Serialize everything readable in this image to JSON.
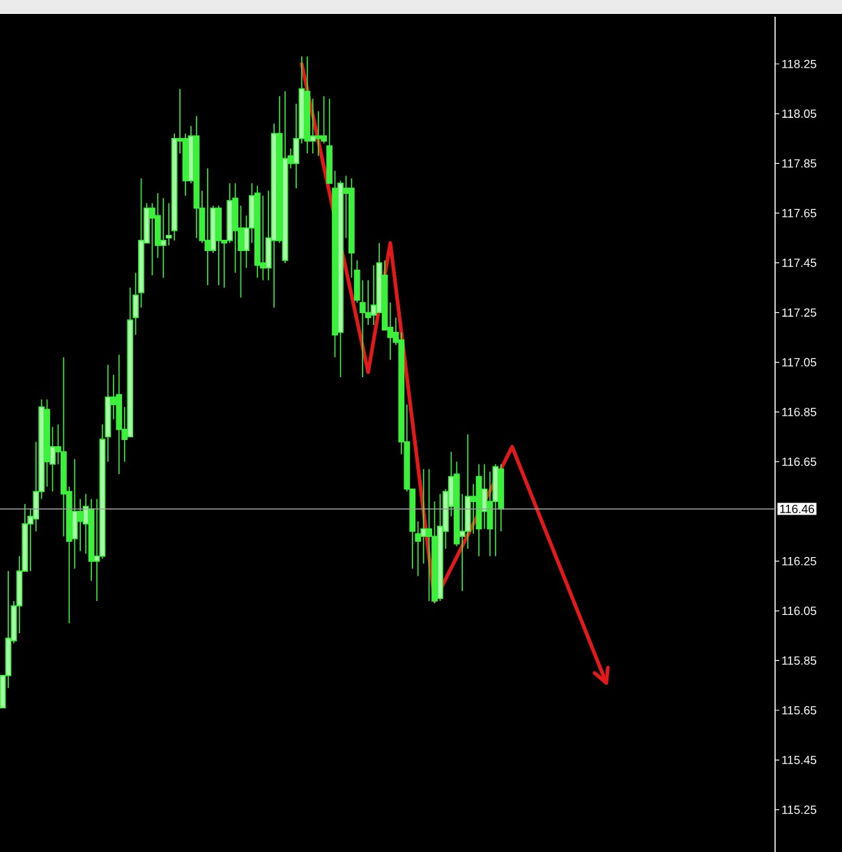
{
  "chart_data": {
    "type": "candlestick",
    "color": "#3cf03c",
    "categories": [
      null,
      null,
      null,
      null,
      null,
      null,
      null,
      null,
      null,
      null,
      null,
      null,
      null,
      null,
      null,
      null,
      null,
      null,
      null,
      null,
      null,
      null,
      null,
      null,
      null,
      null,
      null,
      null,
      null,
      null,
      null,
      null,
      null,
      null,
      null,
      null,
      null,
      null,
      null,
      null,
      null,
      null,
      null,
      null,
      null,
      null,
      null,
      null,
      null,
      null,
      null,
      null,
      null,
      null,
      null,
      null,
      null,
      null,
      null,
      null,
      null,
      null,
      null,
      null,
      null,
      null,
      null,
      null,
      null,
      null,
      null,
      null,
      null,
      null,
      null,
      null,
      null,
      null,
      null,
      null,
      null,
      null,
      null,
      null,
      null,
      null,
      null,
      null,
      null,
      null,
      null,
      null,
      null,
      null,
      null,
      null,
      null,
      null,
      null,
      null,
      null,
      null,
      null,
      null,
      null,
      null,
      null,
      null,
      null,
      null,
      null,
      null,
      null,
      null,
      null,
      null,
      null,
      null,
      null,
      null,
      null,
      null,
      null,
      null,
      null,
      null,
      null,
      null,
      null,
      null,
      null,
      null,
      null,
      null,
      null,
      null,
      null,
      null,
      null,
      null
    ],
    "ohlc": [
      [
        115.66,
        115.79,
        115.66,
        115.79
      ],
      [
        115.79,
        116.21,
        115.74,
        115.94
      ],
      [
        115.93,
        116.09,
        115.92,
        116.07
      ],
      [
        116.07,
        116.27,
        115.96,
        116.21
      ],
      [
        116.21,
        116.48,
        116.21,
        116.4
      ],
      [
        116.4,
        116.46,
        116.21,
        116.43
      ],
      [
        116.42,
        116.73,
        116.37,
        116.53
      ],
      [
        116.53,
        116.9,
        116.5,
        116.87
      ],
      [
        116.86,
        116.9,
        116.55,
        116.65
      ],
      [
        116.64,
        116.79,
        116.53,
        116.71
      ],
      [
        116.71,
        116.8,
        116.64,
        116.69
      ],
      [
        116.69,
        117.07,
        116.35,
        116.52
      ],
      [
        116.53,
        116.55,
        116.0,
        116.33
      ],
      [
        116.34,
        116.66,
        116.22,
        116.45
      ],
      [
        116.45,
        116.5,
        116.29,
        116.41
      ],
      [
        116.4,
        116.52,
        116.28,
        116.47
      ],
      [
        116.46,
        116.5,
        116.17,
        116.25
      ],
      [
        116.25,
        116.5,
        116.09,
        116.27
      ],
      [
        116.27,
        116.8,
        116.26,
        116.74
      ],
      [
        116.75,
        117.04,
        116.65,
        116.91
      ],
      [
        116.91,
        117.0,
        116.82,
        116.88
      ],
      [
        116.92,
        117.08,
        116.6,
        116.78
      ],
      [
        116.78,
        116.87,
        116.65,
        116.74
      ],
      [
        116.75,
        117.35,
        116.75,
        117.22
      ],
      [
        117.23,
        117.41,
        117.16,
        117.32
      ],
      [
        117.33,
        117.79,
        117.27,
        117.54
      ],
      [
        117.53,
        117.69,
        117.53,
        117.67
      ],
      [
        117.67,
        117.69,
        117.4,
        117.63
      ],
      [
        117.64,
        117.73,
        117.47,
        117.52
      ],
      [
        117.52,
        117.71,
        117.39,
        117.54
      ],
      [
        117.55,
        117.69,
        117.52,
        117.56
      ],
      [
        117.58,
        117.97,
        117.54,
        117.95
      ],
      [
        117.95,
        118.15,
        117.89,
        117.94
      ],
      [
        117.95,
        117.97,
        117.72,
        117.78
      ],
      [
        117.78,
        118.0,
        117.77,
        117.96
      ],
      [
        117.96,
        118.04,
        117.55,
        117.67
      ],
      [
        117.67,
        117.74,
        117.53,
        117.54
      ],
      [
        117.54,
        117.83,
        117.36,
        117.5
      ],
      [
        117.5,
        117.68,
        117.49,
        117.67
      ],
      [
        117.67,
        117.68,
        117.36,
        117.54
      ],
      [
        117.54,
        117.54,
        117.35,
        117.53
      ],
      [
        117.54,
        117.77,
        117.53,
        117.7
      ],
      [
        117.71,
        117.77,
        117.41,
        117.58
      ],
      [
        117.59,
        117.68,
        117.31,
        117.5
      ],
      [
        117.5,
        117.64,
        117.43,
        117.59
      ],
      [
        117.59,
        117.77,
        117.53,
        117.72
      ],
      [
        117.73,
        117.76,
        117.39,
        117.44
      ],
      [
        117.45,
        117.72,
        117.38,
        117.43
      ],
      [
        117.43,
        117.74,
        117.38,
        117.55
      ],
      [
        117.54,
        118.01,
        117.27,
        117.97
      ],
      [
        117.97,
        118.12,
        117.53,
        117.54
      ],
      [
        117.46,
        118.14,
        117.45,
        117.87
      ],
      [
        117.88,
        117.91,
        117.83,
        117.85
      ],
      [
        117.85,
        118.09,
        117.75,
        117.95
      ],
      [
        117.95,
        118.28,
        117.93,
        118.15
      ],
      [
        118.14,
        118.28,
        117.89,
        117.94
      ],
      [
        117.94,
        118.11,
        117.89,
        117.96
      ],
      [
        117.96,
        118.06,
        117.88,
        117.95
      ],
      [
        117.96,
        118.12,
        117.93,
        117.94
      ],
      [
        117.92,
        118.11,
        117.77,
        117.77
      ],
      [
        117.75,
        117.82,
        117.07,
        117.16
      ],
      [
        117.17,
        117.78,
        116.99,
        117.77
      ],
      [
        117.75,
        117.8,
        117.55,
        117.73
      ],
      [
        117.75,
        117.79,
        117.39,
        117.49
      ],
      [
        117.42,
        117.46,
        117.29,
        117.3
      ],
      [
        117.29,
        117.38,
        116.99,
        117.25
      ],
      [
        117.25,
        117.38,
        117.2,
        117.23
      ],
      [
        117.24,
        117.44,
        117.2,
        117.28
      ],
      [
        117.25,
        117.53,
        117.25,
        117.45
      ],
      [
        117.4,
        117.46,
        117.18,
        117.18
      ],
      [
        117.19,
        117.29,
        117.06,
        117.15
      ],
      [
        117.17,
        117.23,
        117.12,
        117.13
      ],
      [
        117.14,
        117.17,
        116.68,
        116.73
      ],
      [
        116.73,
        116.88,
        116.53,
        116.54
      ],
      [
        116.54,
        116.54,
        116.22,
        116.37
      ],
      [
        116.36,
        116.41,
        116.19,
        116.33
      ],
      [
        116.35,
        116.62,
        116.24,
        116.38
      ],
      [
        116.38,
        116.62,
        116.09,
        116.35
      ],
      [
        116.35,
        116.49,
        116.08,
        116.09
      ],
      [
        116.1,
        116.52,
        116.09,
        116.39
      ],
      [
        116.37,
        116.54,
        116.3,
        116.53
      ],
      [
        116.47,
        116.69,
        116.43,
        116.59
      ],
      [
        116.6,
        116.65,
        116.31,
        116.32
      ],
      [
        116.35,
        116.52,
        116.13,
        116.37
      ],
      [
        116.37,
        116.76,
        116.3,
        116.51
      ],
      [
        116.51,
        116.56,
        116.36,
        116.49
      ],
      [
        116.59,
        116.64,
        116.27,
        116.38
      ],
      [
        116.45,
        116.64,
        116.38,
        116.54
      ],
      [
        116.49,
        116.61,
        116.27,
        116.38
      ],
      [
        116.49,
        116.64,
        116.27,
        116.63
      ],
      [
        116.62,
        116.64,
        116.37,
        116.46
      ],
      null,
      null,
      null,
      null,
      null,
      null,
      null,
      null,
      null,
      null,
      null,
      null,
      null,
      null,
      null,
      null,
      null,
      null,
      null,
      null,
      null,
      null,
      null,
      null,
      null,
      null,
      null,
      null,
      null,
      null,
      null,
      null,
      null,
      null,
      null,
      null,
      null,
      null,
      null,
      null,
      null,
      null,
      null,
      null,
      null,
      null,
      null,
      null,
      null
    ],
    "series": [
      {
        "type": "line",
        "color": "#e41a1a",
        "line_style": "solid",
        "values": [
          null,
          null,
          null,
          null,
          null,
          null,
          null,
          null,
          null,
          null,
          null,
          null,
          null,
          null,
          null,
          null,
          null,
          null,
          null,
          null,
          null,
          null,
          null,
          null,
          null,
          null,
          null,
          null,
          null,
          null,
          null,
          null,
          null,
          null,
          null,
          null,
          null,
          null,
          null,
          null,
          null,
          null,
          null,
          null,
          null,
          null,
          null,
          null,
          null,
          null,
          null,
          null,
          null,
          null,
          118.25,
          null,
          null,
          null,
          null,
          null,
          null,
          null,
          null,
          null,
          null,
          null,
          117.01,
          null,
          null,
          null,
          117.53,
          null,
          null,
          null,
          null,
          null,
          null,
          null,
          116.09,
          null,
          null,
          null,
          null,
          null,
          null,
          null,
          null,
          null,
          null,
          null,
          null,
          null,
          116.71,
          null,
          null,
          null,
          null,
          null,
          null,
          null,
          null,
          null,
          null,
          null,
          null,
          null,
          null,
          null,
          null,
          115.76,
          null,
          null,
          null,
          null,
          null,
          null,
          null,
          null,
          null,
          null,
          null,
          null,
          null,
          null,
          null,
          null,
          null,
          null,
          null,
          null,
          null,
          null,
          null,
          null,
          null,
          null,
          null,
          null,
          null,
          null
        ]
      }
    ],
    "ylim": [
      115.08,
      118.44
    ],
    "yticks": [
      115.25,
      115.45,
      115.65,
      115.85,
      116.05,
      116.25,
      116.65,
      116.85,
      117.05,
      117.25,
      117.45,
      117.65,
      117.85,
      118.05,
      118.25
    ],
    "tick_labels": "y",
    "grid": false,
    "ref_lines": [
      {
        "axis": "y",
        "value": 116.46,
        "label": "116.46",
        "color": "#a0a0a0"
      }
    ]
  }
}
